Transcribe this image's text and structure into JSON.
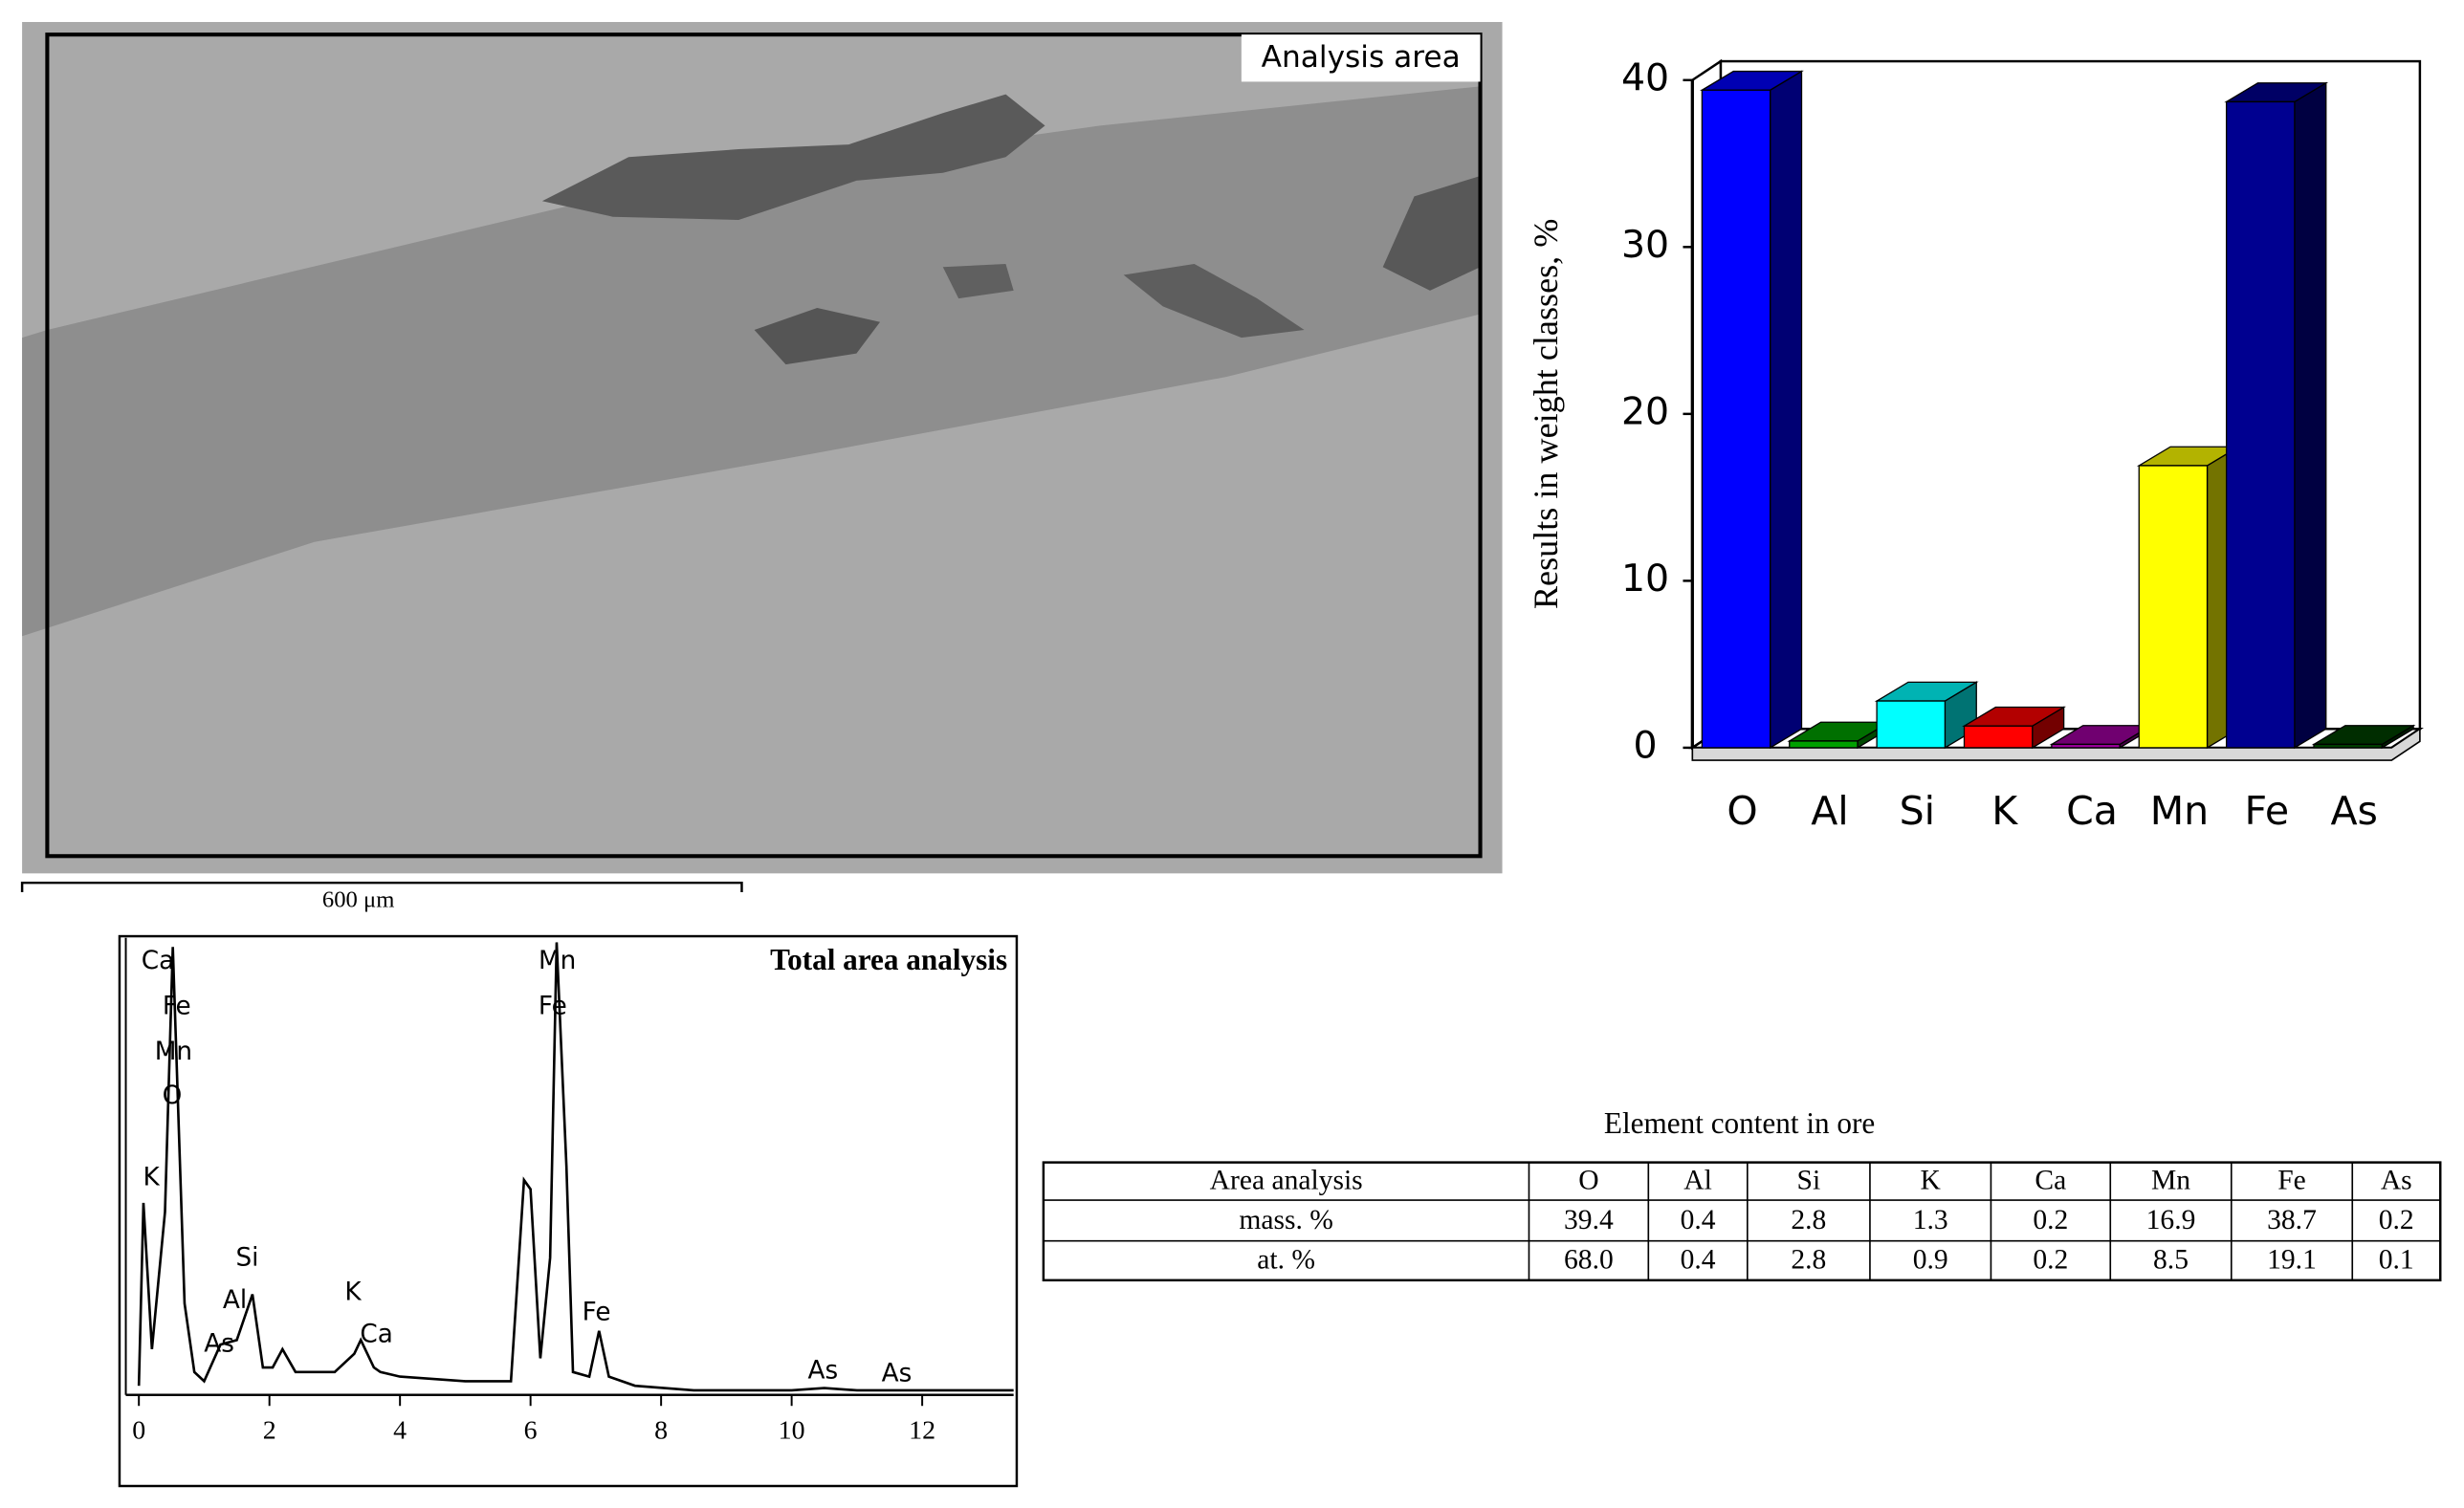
{
  "image": {
    "label": "Analysis area",
    "scale_bar": "600 μm"
  },
  "chart_data": [
    {
      "type": "bar",
      "y_label": "Results in weight classes, %",
      "categories": [
        "O",
        "Al",
        "Si",
        "K",
        "Ca",
        "Mn",
        "Fe",
        "As"
      ],
      "values": [
        39.4,
        0.4,
        2.8,
        1.3,
        0.2,
        16.9,
        38.7,
        0.2
      ],
      "colors": [
        "#0000ff",
        "#00a000",
        "#00ffff",
        "#ff0000",
        "#a000a0",
        "#ffff00",
        "#000090",
        "#004000"
      ],
      "ylim": [
        0,
        40
      ],
      "yticks": [
        0,
        10,
        20,
        30,
        40
      ]
    },
    {
      "type": "line",
      "title": "Total area analysis",
      "color": "#000000",
      "x": [
        0.0,
        0.07,
        0.2,
        0.4,
        0.52,
        0.7,
        0.85,
        1.0,
        1.25,
        1.5,
        1.74,
        1.9,
        2.05,
        2.2,
        2.4,
        3.0,
        3.3,
        3.4,
        3.6,
        3.7,
        4.0,
        5.0,
        5.7,
        5.9,
        6.0,
        6.15,
        6.3,
        6.4,
        6.55,
        6.65,
        6.9,
        7.05,
        7.2,
        7.6,
        8.5,
        10.0,
        10.5,
        11.0,
        12.0,
        13.4
      ],
      "values": [
        2,
        42,
        10,
        40,
        98,
        20,
        5,
        3,
        11,
        12,
        22,
        6,
        6,
        10,
        5,
        5,
        9,
        12,
        6,
        5,
        4,
        3,
        3,
        47,
        45,
        8,
        30,
        99,
        50,
        5,
        4,
        14,
        4,
        2,
        1,
        1,
        1.5,
        1,
        1,
        1
      ],
      "xlim": [
        -0.2,
        13.4
      ],
      "xticks": [
        0,
        2,
        4,
        6,
        8,
        10,
        12
      ],
      "ylim": [
        0,
        100
      ],
      "annotations": [
        {
          "text": "Ca",
          "x": 0.29,
          "y": 94.8
        },
        {
          "text": "Fe",
          "x": 0.58,
          "y": 84.9
        },
        {
          "text": "Mn",
          "x": 0.53,
          "y": 74.9
        },
        {
          "text": "O",
          "x": 0.51,
          "y": 65.3
        },
        {
          "text": "K",
          "x": 0.19,
          "y": 47.4
        },
        {
          "text": "Si",
          "x": 1.66,
          "y": 29.9
        },
        {
          "text": "Al",
          "x": 1.47,
          "y": 20.6
        },
        {
          "text": "As",
          "x": 1.23,
          "y": 11.0
        },
        {
          "text": "K",
          "x": 3.28,
          "y": 22.3
        },
        {
          "text": "Ca",
          "x": 3.64,
          "y": 13.1
        },
        {
          "text": "Mn",
          "x": 6.41,
          "y": 94.8
        },
        {
          "text": "Fe",
          "x": 6.34,
          "y": 84.9
        },
        {
          "text": "Fe",
          "x": 7.01,
          "y": 17.9
        },
        {
          "text": "As",
          "x": 10.48,
          "y": 5.2
        },
        {
          "text": "As",
          "x": 11.61,
          "y": 4.5
        }
      ]
    }
  ],
  "table": {
    "title": "Element content in ore",
    "header": [
      "Area analysis",
      "O",
      "Al",
      "Si",
      "K",
      "Ca",
      "Mn",
      "Fe",
      "As"
    ],
    "rows": [
      [
        "mass. %",
        "39.4",
        "0.4",
        "2.8",
        "1.3",
        "0.2",
        "16.9",
        "38.7",
        "0.2"
      ],
      [
        "at. %",
        "68.0",
        "0.4",
        "2.8",
        "0.9",
        "0.2",
        "8.5",
        "19.1",
        "0.1"
      ]
    ]
  }
}
